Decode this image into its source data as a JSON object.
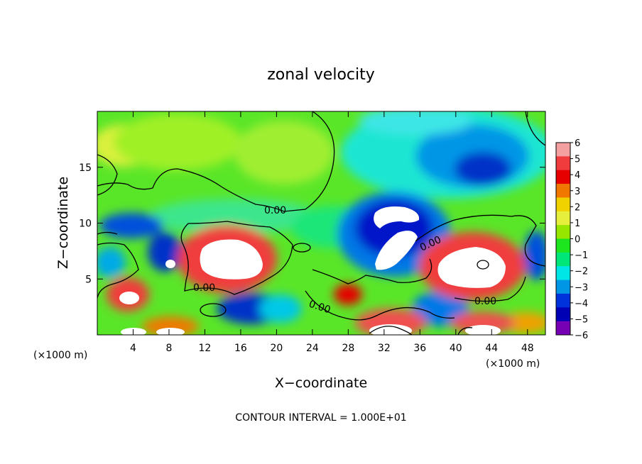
{
  "chart_data": {
    "type": "heatmap",
    "title": "zonal velocity",
    "xlabel": "X−coordinate",
    "ylabel": "Z−coordinate",
    "x_unit": "(×1000 m)",
    "y_unit": "(×1000 m)",
    "xlim": [
      0,
      50
    ],
    "ylim": [
      0,
      20
    ],
    "x_ticks": [
      4,
      8,
      12,
      16,
      20,
      24,
      28,
      32,
      36,
      40,
      44,
      48
    ],
    "y_ticks": [
      5,
      10,
      15
    ],
    "colorbar": {
      "ticks": [
        "6",
        "5",
        "4",
        "3",
        "2",
        "1",
        "0",
        "−1",
        "−2",
        "−3",
        "−4",
        "−5",
        "−6"
      ],
      "colors": [
        "#f5a0a0",
        "#f03c3c",
        "#e60000",
        "#f07800",
        "#f0d200",
        "#e6f03c",
        "#96e600",
        "#1ee61e",
        "#00e678",
        "#00e6e6",
        "#0096e6",
        "#0032dc",
        "#0000b4",
        "#7800b4"
      ]
    },
    "contour_labels": [
      "0.00",
      "0.00",
      "0.00",
      "0.00",
      "0.00"
    ],
    "footer": "CONTOUR INTERVAL = 1.000E+01"
  }
}
